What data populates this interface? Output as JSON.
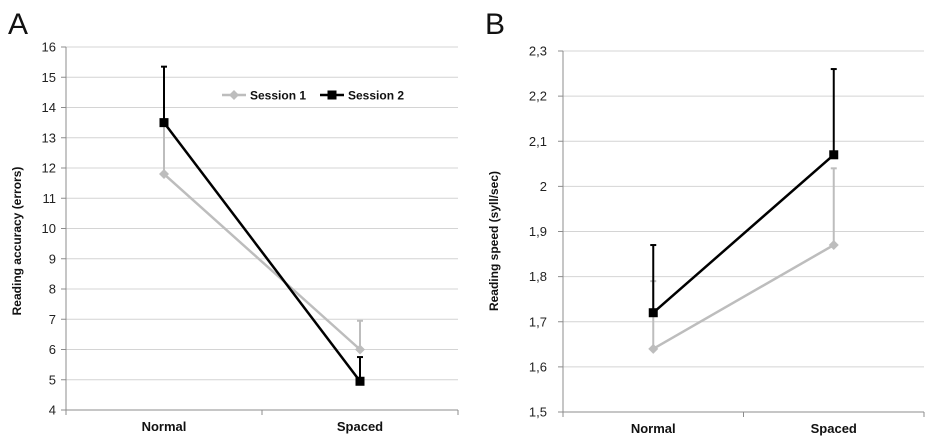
{
  "chart_data": [
    {
      "panel": "A",
      "type": "line",
      "ylabel": "Reading accuracy (errors)",
      "categories": [
        "Normal",
        "Spaced"
      ],
      "ylim": [
        4,
        16
      ],
      "ytick_step": 1,
      "ytick_labels": [
        "4",
        "5",
        "6",
        "7",
        "8",
        "9",
        "10",
        "11",
        "12",
        "13",
        "14",
        "15",
        "16"
      ],
      "grid": true,
      "legend": "top-right",
      "series": [
        {
          "name": "Session 1",
          "values": [
            11.8,
            6.0
          ],
          "error_upper": [
            13.5,
            6.95
          ],
          "color": "#bdbdbd",
          "marker": "diamond"
        },
        {
          "name": "Session 2",
          "values": [
            13.5,
            4.95
          ],
          "error_upper": [
            15.35,
            5.75
          ],
          "color": "#000000",
          "marker": "square"
        }
      ]
    },
    {
      "panel": "B",
      "type": "line",
      "ylabel": "Reading speed (syll/sec)",
      "categories": [
        "Normal",
        "Spaced"
      ],
      "ylim": [
        1.5,
        2.3
      ],
      "ytick_step": 0.1,
      "ytick_labels": [
        "1,5",
        "1,6",
        "1,7",
        "1,8",
        "1,9",
        "2",
        "2,1",
        "2,2",
        "2,3"
      ],
      "grid": true,
      "legend": "none",
      "series": [
        {
          "name": "Session 1",
          "values": [
            1.64,
            1.87
          ],
          "error_upper": [
            1.79,
            2.04
          ],
          "color": "#bdbdbd",
          "marker": "diamond"
        },
        {
          "name": "Session 2",
          "values": [
            1.72,
            2.07
          ],
          "error_upper": [
            1.87,
            2.26
          ],
          "color": "#000000",
          "marker": "square"
        }
      ]
    }
  ]
}
